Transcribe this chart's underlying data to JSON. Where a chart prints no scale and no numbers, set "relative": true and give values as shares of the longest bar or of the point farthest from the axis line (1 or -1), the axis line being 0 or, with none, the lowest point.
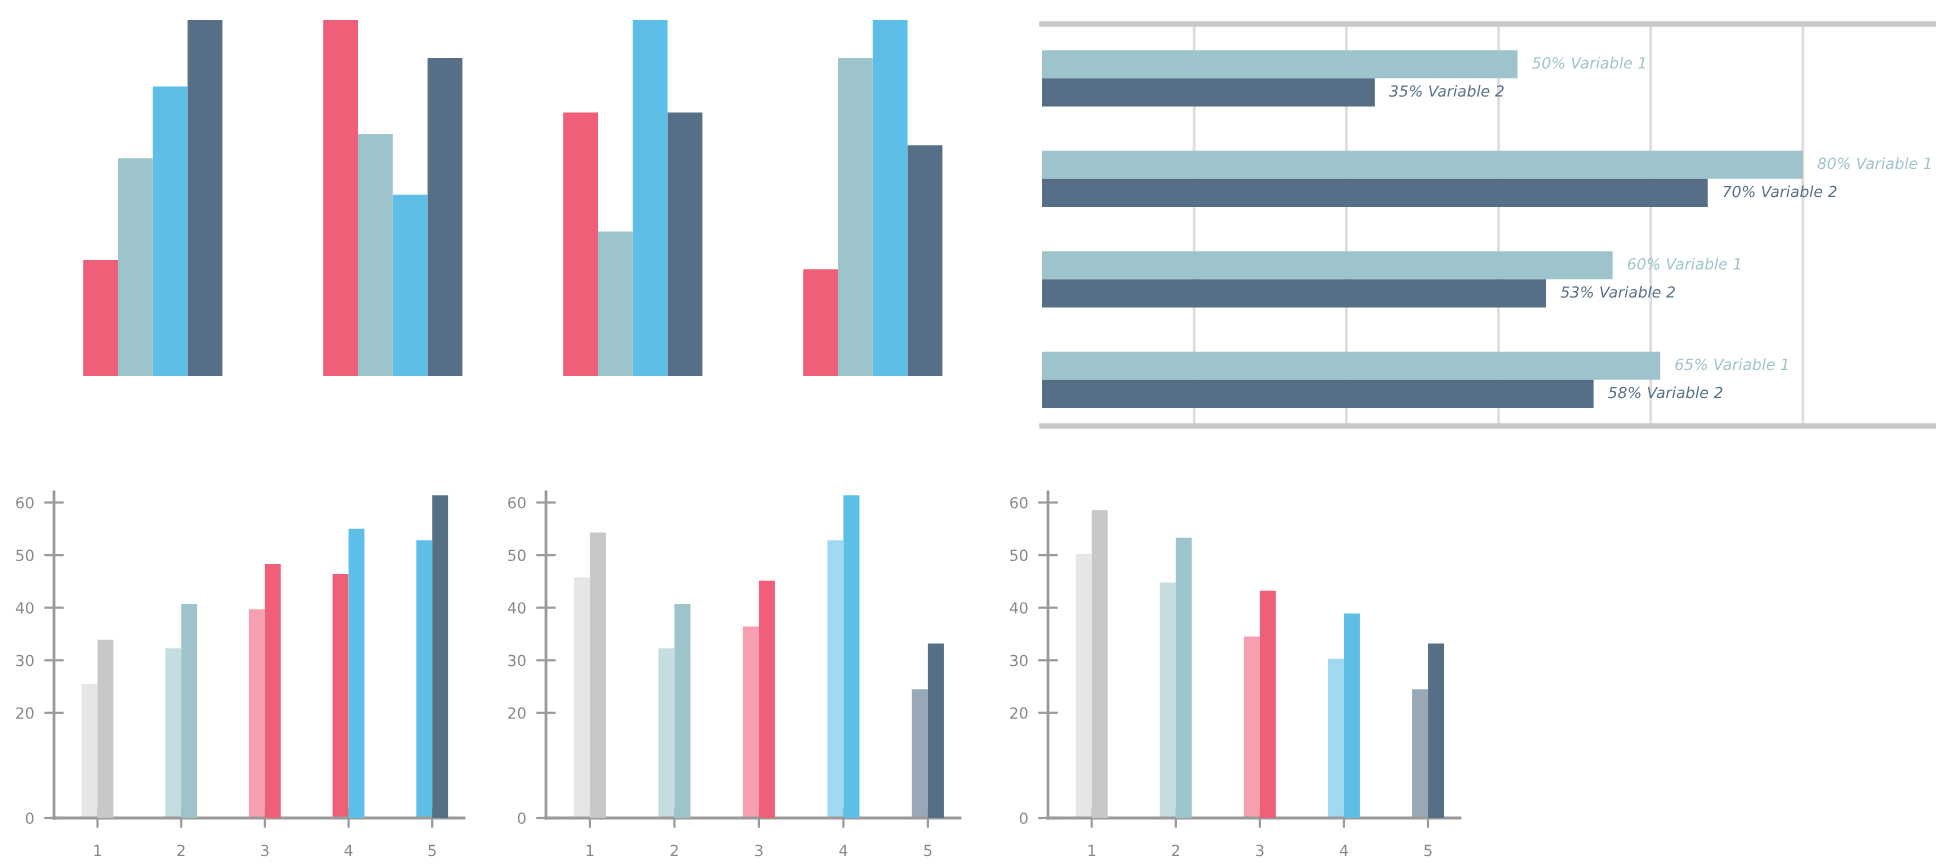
{
  "chart_data": [
    {
      "type": "bar",
      "relative": true,
      "categories": [
        null,
        null,
        null,
        null
      ],
      "series": [
        {
          "color": "#ef5f78",
          "values": [
            0.326,
            1,
            0.74,
            0.3
          ]
        },
        {
          "color": "#9dc4ca",
          "values": [
            0.612,
            0.68,
            0.406,
            0.893
          ]
        },
        {
          "color": "#5dbfe8",
          "values": [
            0.813,
            0.509,
            1,
            1
          ]
        },
        {
          "color": "#566f87",
          "values": [
            1,
            0.893,
            0.74,
            0.648
          ]
        }
      ]
    },
    {
      "type": "bar",
      "orientation": "horizontal",
      "categories": [
        null,
        null,
        null,
        null
      ],
      "xlim": [
        0,
        94
      ],
      "xticks": [
        {
          "value": 16,
          "label": null
        },
        {
          "value": 32,
          "label": null
        },
        {
          "value": 48,
          "label": null
        },
        {
          "value": 64,
          "label": null
        },
        {
          "value": 80,
          "label": null
        }
      ],
      "grid": "x",
      "series": [
        {
          "color": "#9dc4ca",
          "values": [
            50,
            80,
            60,
            65
          ],
          "value_labels": [
            "50% Variable 1",
            "80% Variable 1",
            "60% Variable 1",
            "65% Variable 1"
          ]
        },
        {
          "color": "#566f87",
          "values": [
            35,
            70,
            53,
            58
          ],
          "value_labels": [
            "35% Variable 2",
            "70% Variable 2",
            "53% Variable 2",
            "58% Variable 2"
          ]
        }
      ]
    },
    {
      "type": "bar",
      "categories": [
        "1",
        "2",
        "3",
        "4",
        "5"
      ],
      "ylim": [
        0,
        62
      ],
      "yticks": [
        0,
        20,
        30,
        40,
        50,
        60
      ],
      "series": [
        {
          "colors": [
            "#e6e6e6",
            "#c5dde0",
            "#f59fb0",
            "#ef5f78",
            "#5dbfe8"
          ],
          "values": [
            25.5,
            32.3,
            39.7,
            46.4,
            52.8
          ]
        },
        {
          "colors": [
            "#c8c8c8",
            "#9dc4ca",
            "#ef5f78",
            "#5dbfe8",
            "#566f87"
          ],
          "values": [
            33.9,
            40.7,
            48.3,
            55.0,
            61.4
          ]
        }
      ]
    },
    {
      "type": "bar",
      "categories": [
        "1",
        "2",
        "3",
        "4",
        "5"
      ],
      "ylim": [
        0,
        62
      ],
      "yticks": [
        0,
        20,
        30,
        40,
        50,
        60
      ],
      "series": [
        {
          "colors": [
            "#e6e6e6",
            "#c5dde0",
            "#f59fb0",
            "#a2d9f2",
            "#98a8b6"
          ],
          "values": [
            45.8,
            32.3,
            36.4,
            52.8,
            24.5
          ]
        },
        {
          "colors": [
            "#c8c8c8",
            "#9dc4ca",
            "#ef5f78",
            "#5dbfe8",
            "#566f87"
          ],
          "values": [
            54.3,
            40.7,
            45.1,
            61.4,
            33.2
          ]
        }
      ]
    },
    {
      "type": "bar",
      "categories": [
        "1",
        "2",
        "3",
        "4",
        "5"
      ],
      "ylim": [
        0,
        62
      ],
      "yticks": [
        0,
        20,
        30,
        40,
        50,
        60
      ],
      "series": [
        {
          "colors": [
            "#e6e6e6",
            "#c5dde0",
            "#f59fb0",
            "#a2d9f2",
            "#98a8b6"
          ],
          "values": [
            50.2,
            44.8,
            34.5,
            30.3,
            24.5
          ]
        },
        {
          "colors": [
            "#c8c8c8",
            "#9dc4ca",
            "#ef5f78",
            "#5dbfe8",
            "#566f87"
          ],
          "values": [
            58.6,
            53.3,
            43.2,
            38.9,
            33.2
          ]
        }
      ]
    }
  ]
}
